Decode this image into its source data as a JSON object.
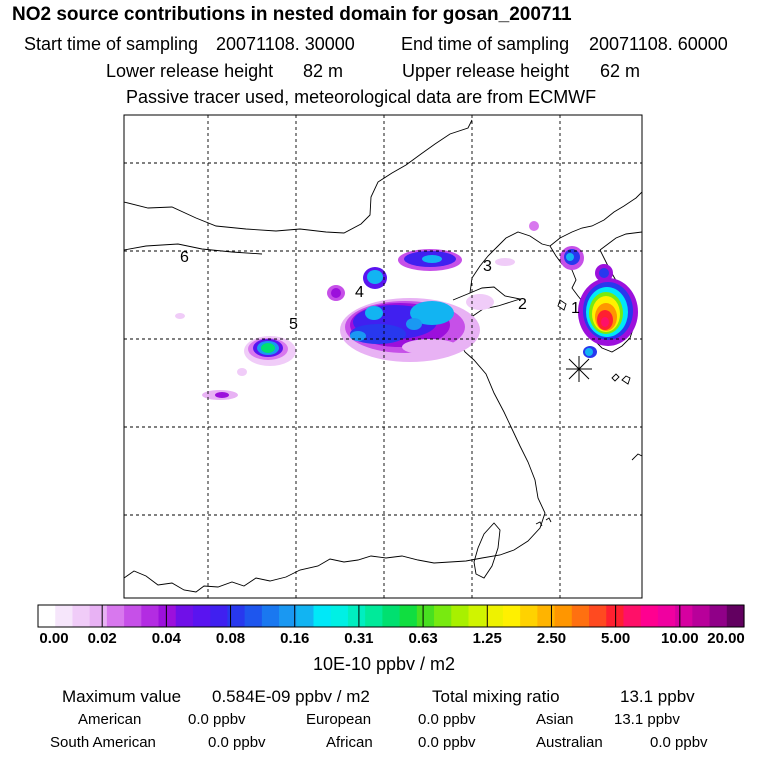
{
  "header": {
    "title": "NO2 source contributions in nested domain for gosan_200711",
    "start_label": "Start time of sampling",
    "start_value": "20071108. 30000",
    "end_label": "End time of sampling",
    "end_value": "20071108. 60000",
    "lower_label": "Lower release height",
    "lower_value": "82 m",
    "upper_label": "Upper release height",
    "upper_value": "62 m",
    "note": "Passive tracer used, meteorological data are from ECMWF"
  },
  "map": {
    "source_labels": [
      "1",
      "2",
      "3",
      "4",
      "5",
      "6"
    ],
    "receptor_marker": "receptor-star"
  },
  "colorbar": {
    "ticks": [
      "0.00",
      "0.02",
      "0.04",
      "0.08",
      "0.16",
      "0.31",
      "0.63",
      "1.25",
      "2.50",
      "5.00",
      "10.00",
      "20.00"
    ],
    "units": "10E-10 ppbv / m2",
    "colors": [
      "#ffffff",
      "#f6e6fb",
      "#f0ccf8",
      "#e8b2f4",
      "#d878ee",
      "#c650e8",
      "#b32ce2",
      "#9c10dc",
      "#7010e8",
      "#5a14f0",
      "#4020f0",
      "#2838ee",
      "#1e56ee",
      "#1a78f0",
      "#1a98f2",
      "#12b4f2",
      "#00e8f8",
      "#00f0e4",
      "#00eec0",
      "#00ea9a",
      "#00e070",
      "#10de40",
      "#48e020",
      "#78ea10",
      "#a8f000",
      "#d0f400",
      "#eef200",
      "#fff000",
      "#ffd200",
      "#ffb400",
      "#ff9600",
      "#ff7010",
      "#ff4a20",
      "#ff2030",
      "#ff1068",
      "#ff0090",
      "#f000a0",
      "#d600a0",
      "#b8009a",
      "#900088",
      "#620060"
    ]
  },
  "stats": {
    "max_label": "Maximum value",
    "max_value": "0.584E-09 ppbv / m2",
    "total_label": "Total mixing ratio",
    "total_value": "13.1 ppbv",
    "regions": [
      {
        "name": "American",
        "value": "0.0 ppbv"
      },
      {
        "name": "European",
        "value": "0.0 ppbv"
      },
      {
        "name": "Asian",
        "value": "13.1 ppbv"
      },
      {
        "name": "South American",
        "value": "0.0 ppbv"
      },
      {
        "name": "African",
        "value": "0.0 ppbv"
      },
      {
        "name": "Australian",
        "value": "0.0 ppbv"
      }
    ]
  }
}
